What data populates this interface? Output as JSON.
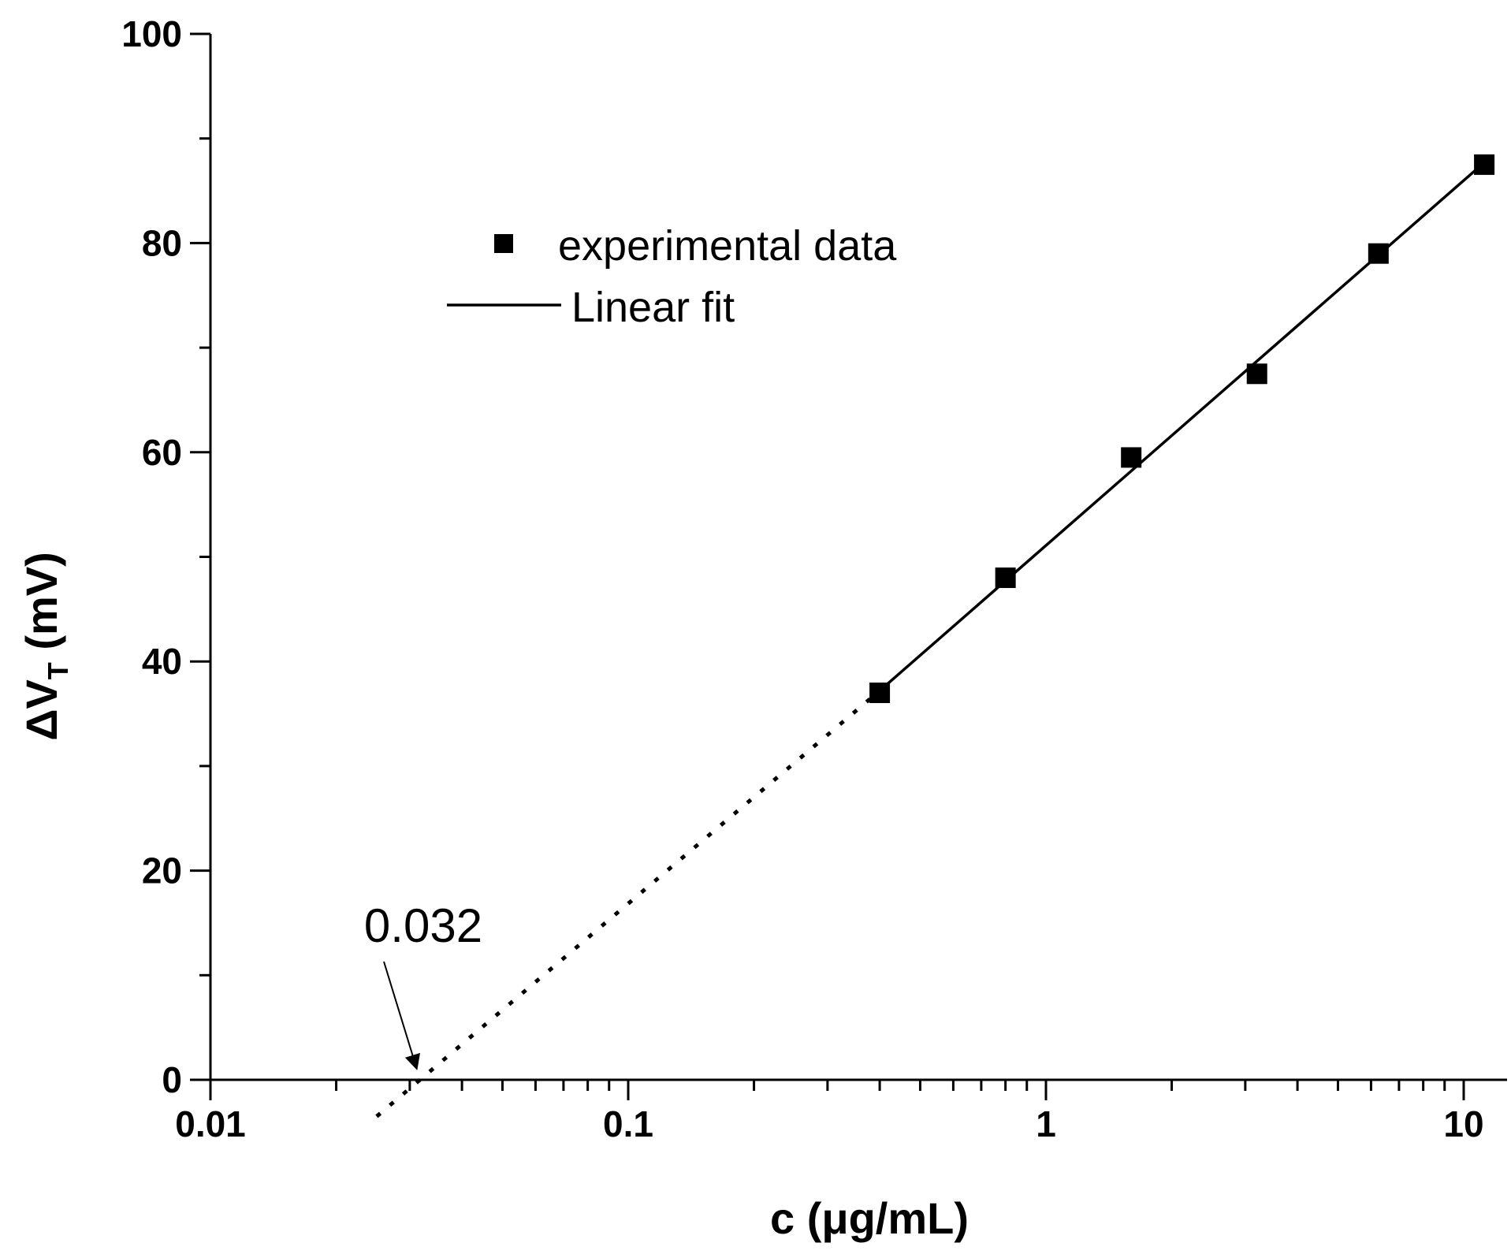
{
  "chart_data": {
    "type": "scatter",
    "title": "",
    "xlabel": "c (μg/mL)",
    "ylabel": "ΔV_T (mV)",
    "ylabel_main": "ΔV",
    "ylabel_sub": "T",
    "ylabel_unit": " (mV)",
    "xscale": "log",
    "xlim": [
      0.01,
      12.5
    ],
    "ylim": [
      0,
      100
    ],
    "x_ticks": [
      0.01,
      0.1,
      1,
      10
    ],
    "x_tick_labels": [
      "0.01",
      "0.1",
      "1",
      "10"
    ],
    "y_ticks": [
      0,
      20,
      40,
      60,
      80,
      100
    ],
    "y_tick_labels": [
      "0",
      "20",
      "40",
      "60",
      "80",
      "100"
    ],
    "grid": false,
    "legend_position": "upper-left",
    "series": [
      {
        "name": "experimental data",
        "type": "scatter",
        "marker": "square",
        "color": "#000000",
        "x": [
          0.4,
          0.8,
          1.6,
          3.2,
          6.25,
          11.2
        ],
        "y": [
          37,
          48,
          59.5,
          67.5,
          79,
          87.5
        ]
      },
      {
        "name": "Linear fit",
        "type": "line",
        "color": "#000000",
        "x": [
          0.4,
          11.2
        ],
        "y": [
          37.2,
          87.7
        ]
      }
    ],
    "extrapolation": {
      "style": "dotted",
      "x": [
        0.025,
        0.4
      ],
      "y": [
        -3.5,
        37.2
      ]
    },
    "annotations": [
      {
        "text": "0.032",
        "points_to_x": 0.032,
        "points_to_y": 0
      }
    ]
  }
}
